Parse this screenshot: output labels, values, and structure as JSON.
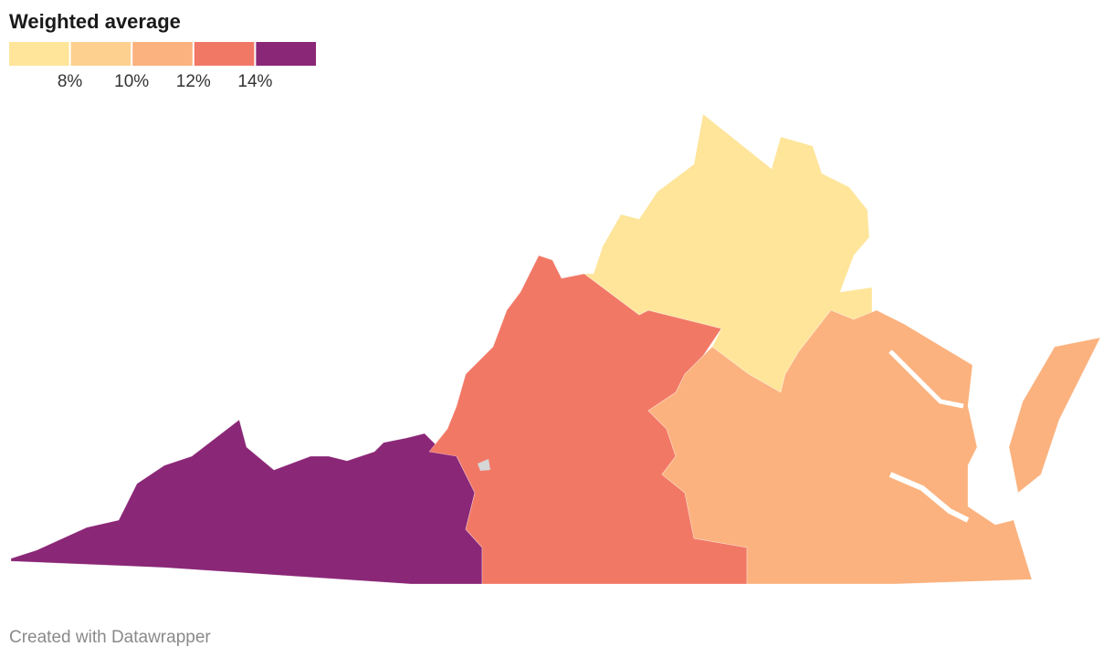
{
  "title": "Weighted average",
  "legend": {
    "colors": [
      "#fee59a",
      "#fdd08f",
      "#fbb27e",
      "#f27866",
      "#8b2777"
    ],
    "ticks": [
      {
        "value": 8,
        "label": "8%"
      },
      {
        "value": 10,
        "label": "10%"
      },
      {
        "value": 12,
        "label": "12%"
      },
      {
        "value": 14,
        "label": "14%"
      }
    ]
  },
  "footer": "Created with Datawrapper"
}
